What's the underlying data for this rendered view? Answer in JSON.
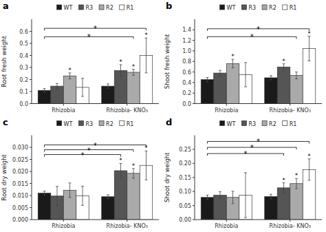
{
  "chart_data": [
    {
      "type": "bar",
      "title": "a",
      "ylabel": "Root fresh weight",
      "categories": [
        "Rhizobia",
        "Rhizobia- KNO₃"
      ],
      "series": [
        {
          "name": "WT",
          "color": "#1a1a1a",
          "values": [
            0.11,
            0.145
          ],
          "errors": [
            0.015,
            0.018
          ]
        },
        {
          "name": "R3",
          "color": "#555555",
          "values": [
            0.145,
            0.275
          ],
          "errors": [
            0.022,
            0.048
          ]
        },
        {
          "name": "R2",
          "color": "#aaaaaa",
          "values": [
            0.23,
            0.26
          ],
          "errors": [
            0.025,
            0.025
          ]
        },
        {
          "name": "R1",
          "color": "#ffffff",
          "values": [
            0.135,
            0.4
          ],
          "errors": [
            0.075,
            0.145
          ]
        }
      ],
      "ylim": [
        0,
        0.7
      ],
      "yticks": [
        {
          "value": 0,
          "label": "0.0"
        },
        0.1,
        0.2,
        0.3,
        0.4,
        0.5,
        0.6
      ],
      "grid": false,
      "legend": "top",
      "annotations": [
        {
          "text": "*",
          "series": "R3",
          "category": "Rhizobia- KNO₃"
        },
        {
          "text": "*",
          "series": "R2",
          "category": "Rhizobia"
        },
        {
          "text": "*",
          "series": "R2",
          "category": "Rhizobia- KNO₃"
        },
        {
          "text": "*",
          "series": "R1",
          "category": "Rhizobia- KNO₃"
        }
      ],
      "brackets": [
        {
          "text": "*",
          "from": {
            "series": "WT",
            "category": "Rhizobia"
          },
          "to": {
            "series": "R2",
            "category": "Rhizobia- KNO₃"
          },
          "y": 0.555
        },
        {
          "text": "*",
          "from": {
            "series": "WT",
            "category": "Rhizobia"
          },
          "to": {
            "series": "R1",
            "category": "Rhizobia- KNO₃"
          },
          "y": 0.625
        }
      ]
    },
    {
      "type": "bar",
      "title": "b",
      "ylabel": "Shoot fresh weight",
      "categories": [
        "Rhizobia",
        "Rhizobia- KNO₃"
      ],
      "series": [
        {
          "name": "WT",
          "color": "#1a1a1a",
          "values": [
            0.455,
            0.49
          ],
          "errors": [
            0.04,
            0.04
          ]
        },
        {
          "name": "R3",
          "color": "#555555",
          "values": [
            0.58,
            0.695
          ],
          "errors": [
            0.05,
            0.06
          ]
        },
        {
          "name": "R2",
          "color": "#aaaaaa",
          "values": [
            0.76,
            0.535
          ],
          "errors": [
            0.08,
            0.065
          ]
        },
        {
          "name": "R1",
          "color": "#ffffff",
          "values": [
            0.55,
            1.045
          ],
          "errors": [
            0.23,
            0.235
          ]
        }
      ],
      "ylim": [
        0,
        1.6
      ],
      "yticks": [
        {
          "value": 0,
          "label": "0.0"
        },
        0.2,
        0.4,
        0.6,
        0.8,
        {
          "value": 1.0,
          "label": "1.0"
        },
        1.2,
        1.4
      ],
      "grid": false,
      "legend": "top",
      "annotations": [
        {
          "text": "*",
          "series": "R3",
          "category": "Rhizobia- KNO₃"
        },
        {
          "text": "*",
          "series": "R2",
          "category": "Rhizobia"
        },
        {
          "text": "*",
          "series": "R1",
          "category": "Rhizobia- KNO₃"
        }
      ],
      "brackets": [
        {
          "text": "*",
          "from": {
            "series": "WT",
            "category": "Rhizobia"
          },
          "to": {
            "series": "R2",
            "category": "Rhizobia- KNO₃"
          },
          "y": 1.27
        },
        {
          "text": "*",
          "from": {
            "series": "WT",
            "category": "Rhizobia"
          },
          "to": {
            "series": "R1",
            "category": "Rhizobia- KNO₃"
          },
          "y": 1.42
        }
      ]
    },
    {
      "type": "bar",
      "title": "c",
      "ylabel": "Root dry weight",
      "categories": [
        "Rhizobia",
        "Rhizobia- KNO₃"
      ],
      "series": [
        {
          "name": "WT",
          "color": "#1a1a1a",
          "values": [
            0.011,
            0.0095
          ],
          "errors": [
            0.0008,
            0.0008
          ]
        },
        {
          "name": "R3",
          "color": "#555555",
          "values": [
            0.0098,
            0.0203
          ],
          "errors": [
            0.004,
            0.003
          ]
        },
        {
          "name": "R2",
          "color": "#aaaaaa",
          "values": [
            0.0122,
            0.0192
          ],
          "errors": [
            0.003,
            0.002
          ]
        },
        {
          "name": "R1",
          "color": "#ffffff",
          "values": [
            0.0099,
            0.0225
          ],
          "errors": [
            0.004,
            0.006
          ]
        }
      ],
      "ylim": [
        0,
        0.035
      ],
      "yticks": [
        {
          "value": 0,
          "label": "0.000"
        },
        0.005,
        {
          "value": 0.01,
          "label": "0.010"
        },
        {
          "value": 0.015,
          "label": "0.015"
        },
        {
          "value": 0.02,
          "label": "0.020"
        },
        {
          "value": 0.025,
          "label": "0.025"
        },
        {
          "value": 0.03,
          "label": "0.030"
        }
      ],
      "grid": false,
      "legend": "top",
      "annotations": [
        {
          "text": "*",
          "series": "R3",
          "category": "Rhizobia- KNO₃"
        },
        {
          "text": "*",
          "series": "R2",
          "category": "Rhizobia- KNO₃"
        },
        {
          "text": "*",
          "series": "R1",
          "category": "Rhizobia- KNO₃"
        }
      ],
      "brackets": [
        {
          "text": "*",
          "from": {
            "series": "WT",
            "category": "Rhizobia"
          },
          "to": {
            "series": "R3",
            "category": "Rhizobia- KNO₃"
          },
          "y": 0.027
        },
        {
          "text": "*",
          "from": {
            "series": "WT",
            "category": "Rhizobia"
          },
          "to": {
            "series": "R2",
            "category": "Rhizobia- KNO₃"
          },
          "y": 0.029
        },
        {
          "text": "*",
          "from": {
            "series": "WT",
            "category": "Rhizobia"
          },
          "to": {
            "series": "R1",
            "category": "Rhizobia- KNO₃"
          },
          "y": 0.031
        }
      ]
    },
    {
      "type": "bar",
      "title": "d",
      "ylabel": "Shoot dry weight",
      "categories": [
        "Rhizobia",
        "Rhizobia- KNO₃"
      ],
      "series": [
        {
          "name": "WT",
          "color": "#1a1a1a",
          "values": [
            0.079,
            0.082
          ],
          "errors": [
            0.008,
            0.008
          ]
        },
        {
          "name": "R3",
          "color": "#555555",
          "values": [
            0.087,
            0.113
          ],
          "errors": [
            0.012,
            0.018
          ]
        },
        {
          "name": "R2",
          "color": "#aaaaaa",
          "values": [
            0.079,
            0.128
          ],
          "errors": [
            0.022,
            0.018
          ]
        },
        {
          "name": "R1",
          "color": "#ffffff",
          "values": [
            0.087,
            0.178
          ],
          "errors": [
            0.08,
            0.038
          ]
        }
      ],
      "ylim": [
        0,
        0.3
      ],
      "yticks": [
        {
          "value": 0,
          "label": "0.00"
        },
        0.05,
        {
          "value": 0.1,
          "label": "0.10"
        },
        0.15,
        {
          "value": 0.2,
          "label": "0.20"
        },
        0.25
      ],
      "grid": false,
      "legend": "top",
      "annotations": [
        {
          "text": "*",
          "series": "R3",
          "category": "Rhizobia- KNO₃"
        },
        {
          "text": "*",
          "series": "R2",
          "category": "Rhizobia- KNO₃"
        },
        {
          "text": "*",
          "series": "R1",
          "category": "Rhizobia- KNO₃"
        }
      ],
      "brackets": [
        {
          "text": "*",
          "from": {
            "series": "WT",
            "category": "Rhizobia"
          },
          "to": {
            "series": "R3",
            "category": "Rhizobia- KNO₃"
          },
          "y": 0.235
        },
        {
          "text": "*",
          "from": {
            "series": "WT",
            "category": "Rhizobia"
          },
          "to": {
            "series": "R2",
            "category": "Rhizobia- KNO₃"
          },
          "y": 0.257
        },
        {
          "text": "*",
          "from": {
            "series": "WT",
            "category": "Rhizobia"
          },
          "to": {
            "series": "R1",
            "category": "Rhizobia- KNO₃"
          },
          "y": 0.278
        }
      ]
    }
  ]
}
